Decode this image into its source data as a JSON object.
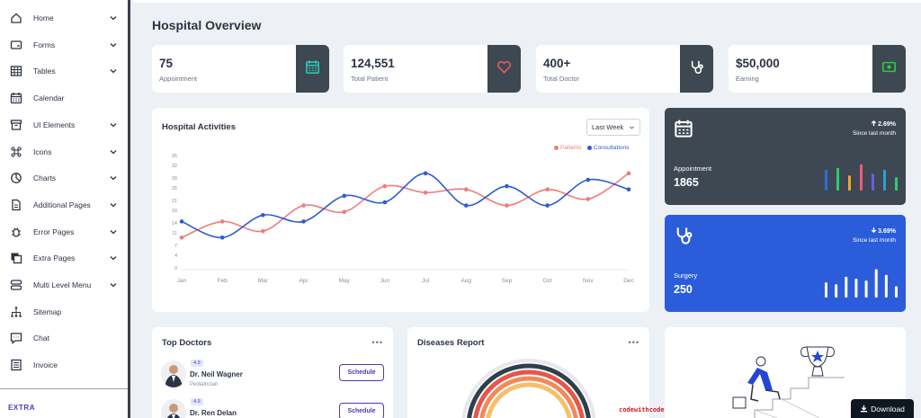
{
  "sidebar": {
    "items": [
      {
        "label": "Home",
        "icon": "home-icon",
        "has_submenu": true
      },
      {
        "label": "Forms",
        "icon": "form-icon",
        "has_submenu": true
      },
      {
        "label": "Tables",
        "icon": "table-icon",
        "has_submenu": true
      },
      {
        "label": "Calendar",
        "icon": "calendar-icon",
        "has_submenu": false
      },
      {
        "label": "UI Elements",
        "icon": "archive-icon",
        "has_submenu": true
      },
      {
        "label": "Icons",
        "icon": "command-icon",
        "has_submenu": true
      },
      {
        "label": "Charts",
        "icon": "pie-chart-icon",
        "has_submenu": true
      },
      {
        "label": "Additional Pages",
        "icon": "file-icon",
        "has_submenu": true
      },
      {
        "label": "Error Pages",
        "icon": "bug-icon",
        "has_submenu": true
      },
      {
        "label": "Extra Pages",
        "icon": "copy-icon",
        "has_submenu": true
      },
      {
        "label": "Multi Level Menu",
        "icon": "server-icon",
        "has_submenu": true
      },
      {
        "label": "Sitemap",
        "icon": "sitemap-icon",
        "has_submenu": false
      },
      {
        "label": "Chat",
        "icon": "chat-icon",
        "has_submenu": false
      },
      {
        "label": "Invoice",
        "icon": "invoice-icon",
        "has_submenu": false
      }
    ],
    "section_label": "EXTRA"
  },
  "page": {
    "title": "Hospital Overview"
  },
  "stats": [
    {
      "value": "75",
      "label": "Appointment",
      "icon": "calendar-icon",
      "icon_color": "#2ec4b6"
    },
    {
      "value": "124,551",
      "label": "Total Patient",
      "icon": "heart-icon",
      "icon_color": "#ef5b5b"
    },
    {
      "value": "400+",
      "label": "Total Doctor",
      "icon": "stethoscope-icon",
      "icon_color": "#ffffff"
    },
    {
      "value": "$50,000",
      "label": "Earning",
      "icon": "money-icon",
      "icon_color": "#2ecc40"
    }
  ],
  "activities": {
    "title": "Hospital Activities",
    "range_select": "Last Week"
  },
  "chart_data": {
    "type": "line",
    "categories": [
      "Jan",
      "Feb",
      "Mar",
      "Apr",
      "May",
      "Jun",
      "Jul",
      "Aug",
      "Sep",
      "Oct",
      "Nov",
      "Dec"
    ],
    "series": [
      {
        "name": "Patients",
        "color": "#ef7b7b",
        "values": [
          10,
          15,
          12,
          20,
          18,
          26,
          24,
          25,
          20,
          25,
          22,
          30
        ]
      },
      {
        "name": "Consultations",
        "color": "#2e5cd0",
        "values": [
          15,
          10,
          17,
          15,
          23,
          21,
          30,
          20,
          26,
          20,
          28,
          25
        ]
      }
    ],
    "yticks": [
      0,
      4,
      7,
      11,
      14,
      18,
      21,
      25,
      28,
      32,
      35
    ],
    "ylim": [
      0,
      35
    ],
    "grid": false,
    "legend": "top-right"
  },
  "side_cards": [
    {
      "label": "Appointment",
      "value": "1865",
      "change": "2.69%",
      "trend": "up",
      "since": "Since last month",
      "icon": "calendar-icon",
      "bg": "#3d4852",
      "bars": [
        {
          "h": 0.55,
          "c": "#2e6fd8"
        },
        {
          "h": 0.6,
          "c": "#2ecc71"
        },
        {
          "h": 0.4,
          "c": "#f5a623"
        },
        {
          "h": 0.7,
          "c": "#ef5b7b"
        },
        {
          "h": 0.45,
          "c": "#6c5ce7"
        },
        {
          "h": 0.55,
          "c": "#2e9fd8"
        },
        {
          "h": 0.35,
          "c": "#2ecc71"
        }
      ]
    },
    {
      "label": "Surgery",
      "value": "250",
      "change": "3.69%",
      "trend": "down",
      "since": "Since last month",
      "icon": "stethoscope-icon",
      "bg": "#2b5ddb",
      "bars": [
        {
          "h": 0.4,
          "c": "#ffffff"
        },
        {
          "h": 0.35,
          "c": "#ffffff"
        },
        {
          "h": 0.55,
          "c": "#ffffff"
        },
        {
          "h": 0.5,
          "c": "#ffffff"
        },
        {
          "h": 0.45,
          "c": "#ffffff"
        },
        {
          "h": 0.75,
          "c": "#ffffff"
        },
        {
          "h": 0.6,
          "c": "#ffffff"
        },
        {
          "h": 0.3,
          "c": "#ffffff"
        }
      ]
    }
  ],
  "top_doctors": {
    "title": "Top Doctors",
    "more": "•••",
    "doctors": [
      {
        "rating": "4.9",
        "name": "Dr. Neil Wagner",
        "specialty": "Pediatrician",
        "button": "Schedule"
      },
      {
        "rating": "4.9",
        "name": "Dr. Ren Delan",
        "specialty": "",
        "button": "Schedule"
      }
    ]
  },
  "diseases": {
    "title": "Diseases Report",
    "more": "•••"
  },
  "watermark": "codewithcode",
  "download_button": "Download"
}
